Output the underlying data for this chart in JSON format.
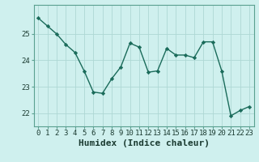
{
  "x": [
    0,
    1,
    2,
    3,
    4,
    5,
    6,
    7,
    8,
    9,
    10,
    11,
    12,
    13,
    14,
    15,
    16,
    17,
    18,
    19,
    20,
    21,
    22,
    23
  ],
  "y": [
    25.6,
    25.3,
    25.0,
    24.6,
    24.3,
    23.6,
    22.8,
    22.75,
    23.3,
    23.75,
    24.65,
    24.5,
    23.55,
    23.6,
    24.45,
    24.2,
    24.2,
    24.1,
    24.7,
    24.7,
    23.6,
    21.9,
    22.1,
    22.25
  ],
  "line_color": "#1a6b5a",
  "marker": "D",
  "markersize": 2.2,
  "linewidth": 1.0,
  "bg_color": "#cff0ee",
  "grid_color": "#aed8d4",
  "xlabel": "Humidex (Indice chaleur)",
  "xlabel_fontsize": 8,
  "tick_fontsize": 6.5,
  "ylim": [
    21.5,
    26.1
  ],
  "yticks": [
    22,
    23,
    24,
    25
  ],
  "xticks": [
    0,
    1,
    2,
    3,
    4,
    5,
    6,
    7,
    8,
    9,
    10,
    11,
    12,
    13,
    14,
    15,
    16,
    17,
    18,
    19,
    20,
    21,
    22,
    23
  ]
}
